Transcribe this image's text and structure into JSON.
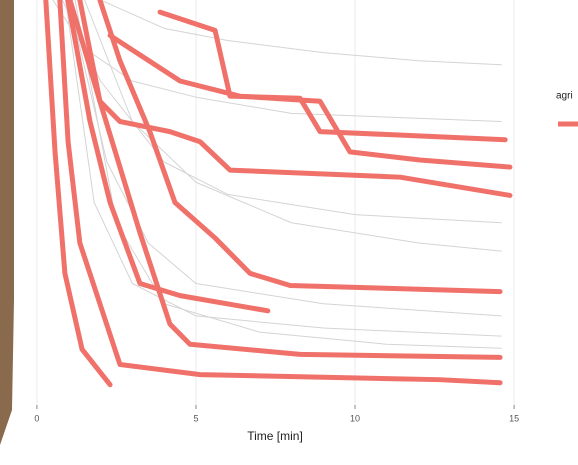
{
  "chart_data": {
    "type": "line",
    "x_label": "Time [min]",
    "legend_title": "agri",
    "legend_color": "#f0716a",
    "xlim": [
      -0.72,
      15.5
    ],
    "xticks": [
      0,
      5,
      10,
      15
    ],
    "ylim": [
      0,
      100
    ],
    "grid": true,
    "series": [
      {
        "color": "#d4d4d4",
        "x": [
          0.5,
          1.5,
          3,
          5,
          8,
          14.6
        ],
        "values": [
          100,
          88,
          80,
          76,
          72,
          70
        ]
      },
      {
        "color": "#d4d4d4",
        "x": [
          0.8,
          2,
          4,
          6,
          10,
          14.6
        ],
        "values": [
          100,
          80,
          60,
          52,
          47,
          45
        ]
      },
      {
        "color": "#d4d4d4",
        "x": [
          1,
          2.2,
          3.5,
          5,
          9,
          14.6
        ],
        "values": [
          100,
          60,
          40,
          30,
          25,
          22
        ]
      },
      {
        "color": "#d4d4d4",
        "x": [
          1.2,
          2.5,
          4,
          7,
          11,
          14.6
        ],
        "values": [
          100,
          45,
          25,
          18,
          15,
          14
        ]
      },
      {
        "color": "#d4d4d4",
        "x": [
          2,
          4,
          6,
          9,
          12,
          14.6
        ],
        "values": [
          100,
          93,
          90,
          87,
          85,
          84
        ]
      },
      {
        "color": "#d4d4d4",
        "x": [
          1.5,
          3,
          5,
          8,
          12,
          14.6
        ],
        "values": [
          100,
          70,
          55,
          45,
          40,
          38
        ]
      },
      {
        "color": "#d4d4d4",
        "x": [
          0.9,
          1.8,
          3,
          5,
          9,
          14.6
        ],
        "values": [
          100,
          50,
          30,
          22,
          19,
          17
        ]
      },
      {
        "color": "#f0716a",
        "x": [
          0.28,
          0.57,
          0.88,
          1.42,
          2.3
        ],
        "values": [
          100,
          62.5,
          32.5,
          13.75,
          5
        ]
      },
      {
        "color": "#f0716a",
        "x": [
          0.72,
          0.98,
          1.35,
          1.98,
          2.61,
          5.13,
          12.67,
          14.56
        ],
        "values": [
          100,
          65,
          40,
          25,
          10,
          7.5,
          6.25,
          5.5
        ]
      },
      {
        "color": "#f0716a",
        "x": [
          0.97,
          1.67,
          2.3,
          3.24,
          4.5,
          7.26
        ],
        "values": [
          100,
          70,
          50,
          30,
          27,
          23.25
        ]
      },
      {
        "color": "#f0716a",
        "x": [
          1.04,
          1.98,
          3.24,
          4.18,
          4.81,
          8.27,
          14.56
        ],
        "values": [
          100,
          75,
          42.5,
          20,
          15,
          12.5,
          11.75
        ]
      },
      {
        "color": "#f0716a",
        "x": [
          1.98,
          2.61,
          3.55,
          4.34,
          5.6,
          6.7,
          7.96,
          14.56
        ],
        "values": [
          100,
          85,
          67.5,
          50,
          41.25,
          32.5,
          29.5,
          28
        ]
      },
      {
        "color": "#f0716a",
        "x": [
          1.35,
          1.98,
          2.61,
          4.18,
          5.13,
          6.07,
          11.42,
          14.87
        ],
        "values": [
          100,
          75,
          70,
          67.5,
          65,
          58,
          56.25,
          51.75
        ]
      },
      {
        "color": "#f0716a",
        "x": [
          2.3,
          4.5,
          6.38,
          8.9,
          9.84,
          12.04,
          14.87
        ],
        "values": [
          91.25,
          80,
          76.25,
          75,
          62.5,
          60.5,
          58.75
        ]
      },
      {
        "color": "#f0716a",
        "x": [
          3.87,
          5.6,
          6.07,
          8.27,
          8.9,
          11.1,
          14.72
        ],
        "values": [
          97,
          92.5,
          76.25,
          75.75,
          67.5,
          66.75,
          65.5
        ]
      }
    ]
  }
}
